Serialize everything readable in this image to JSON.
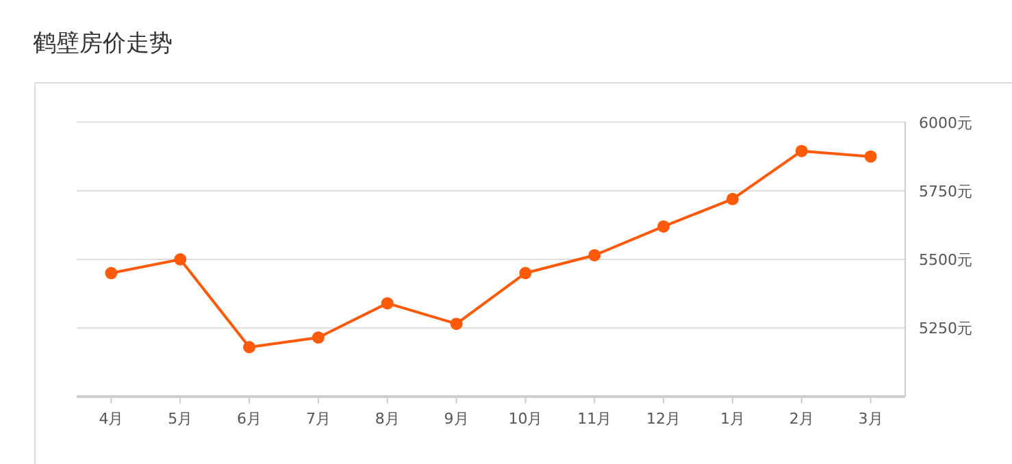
{
  "chart_data": {
    "type": "line",
    "title": "鹤壁房价走势",
    "categories": [
      "4月",
      "5月",
      "6月",
      "7月",
      "8月",
      "9月",
      "10月",
      "11月",
      "12月",
      "1月",
      "2月",
      "3月"
    ],
    "series": [
      {
        "color": "#ff5a0a",
        "values": [
          5450,
          5500,
          5180,
          5215,
          5340,
          5265,
          5450,
          5515,
          5620,
          5720,
          5895,
          5875
        ]
      }
    ],
    "ylim": [
      5000,
      6000
    ],
    "yticks": [
      {
        "value": 5250,
        "label": "5250元"
      },
      {
        "value": 5500,
        "label": "5500元"
      },
      {
        "value": 5750,
        "label": "5750元"
      },
      {
        "value": 6000,
        "label": "6000元"
      }
    ],
    "grid": "y",
    "marker": "circle",
    "line_style": "solid"
  }
}
